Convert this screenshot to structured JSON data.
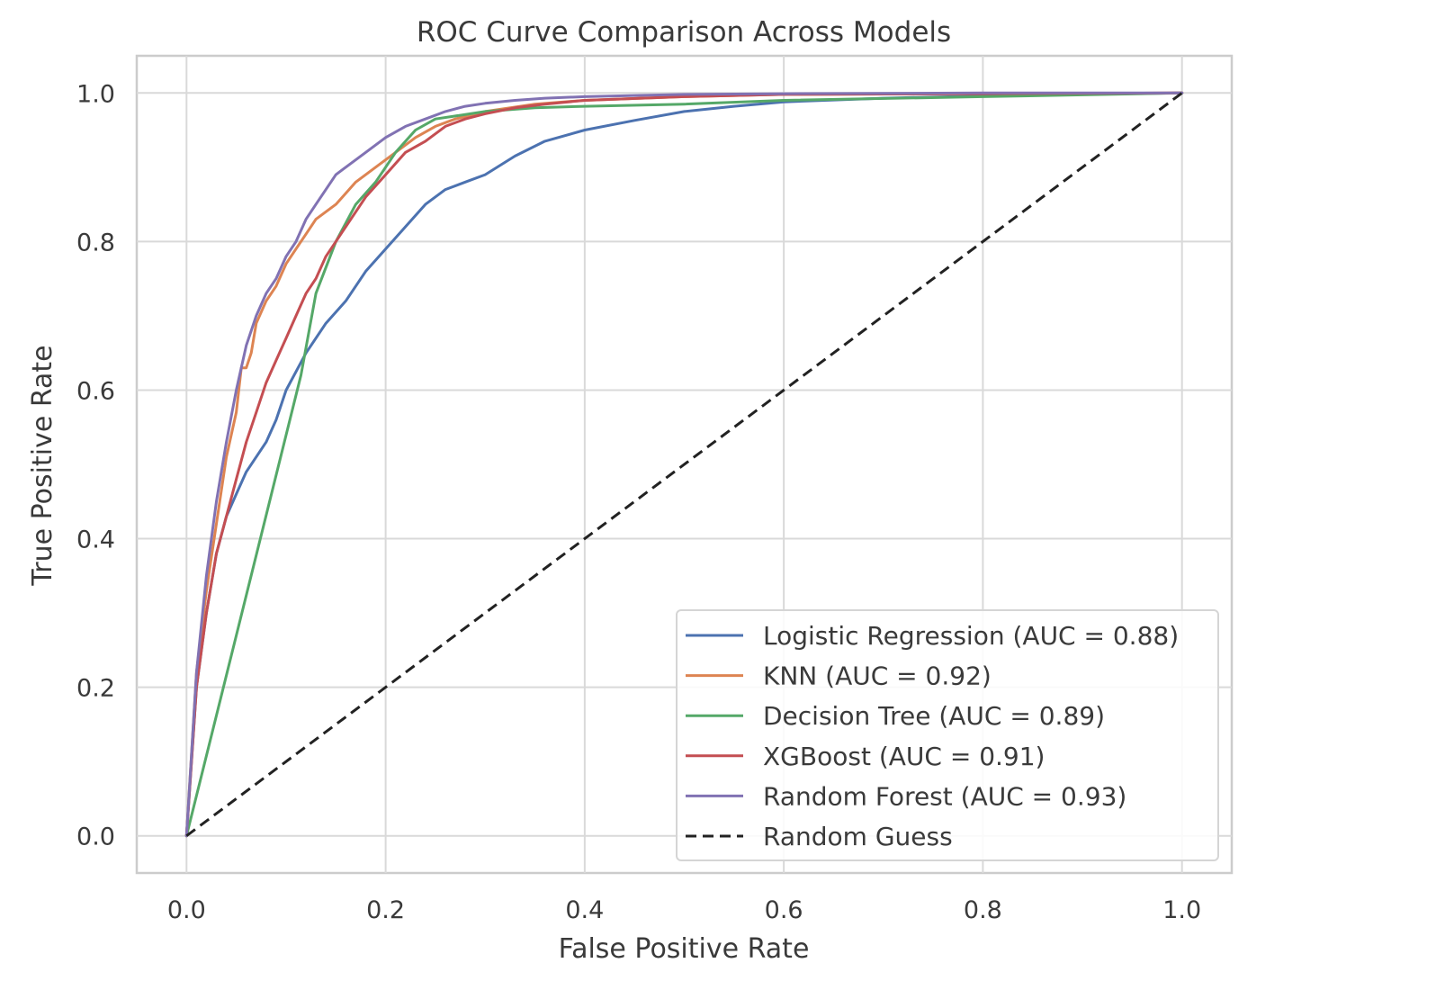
{
  "chart_data": {
    "type": "line",
    "title": "ROC Curve Comparison Across Models",
    "xlabel": "False Positive Rate",
    "ylabel": "True Positive Rate",
    "xlim": [
      -0.05,
      1.05
    ],
    "ylim": [
      -0.05,
      1.05
    ],
    "xticks": [
      "0.0",
      "0.2",
      "0.4",
      "0.6",
      "0.8",
      "1.0"
    ],
    "yticks": [
      "0.0",
      "0.2",
      "0.4",
      "0.6",
      "0.8",
      "1.0"
    ],
    "grid": true,
    "legend_position": "bottom-right",
    "series": [
      {
        "name": "Logistic Regression (AUC = 0.88)",
        "color": "#4c72b0",
        "dash": false,
        "x": [
          0,
          0.01,
          0.02,
          0.03,
          0.04,
          0.05,
          0.06,
          0.07,
          0.08,
          0.09,
          0.1,
          0.12,
          0.14,
          0.16,
          0.18,
          0.2,
          0.22,
          0.24,
          0.26,
          0.28,
          0.3,
          0.33,
          0.36,
          0.4,
          0.45,
          0.5,
          0.55,
          0.6,
          0.7,
          0.8,
          0.9,
          1.0
        ],
        "y": [
          0,
          0.2,
          0.3,
          0.38,
          0.43,
          0.46,
          0.49,
          0.51,
          0.53,
          0.56,
          0.6,
          0.65,
          0.69,
          0.72,
          0.76,
          0.79,
          0.82,
          0.85,
          0.87,
          0.88,
          0.89,
          0.915,
          0.935,
          0.95,
          0.963,
          0.975,
          0.982,
          0.988,
          0.993,
          0.996,
          0.998,
          1.0
        ]
      },
      {
        "name": "KNN (AUC = 0.92)",
        "color": "#dd8452",
        "dash": false,
        "x": [
          0,
          0.01,
          0.02,
          0.03,
          0.04,
          0.05,
          0.055,
          0.06,
          0.065,
          0.07,
          0.08,
          0.09,
          0.1,
          0.11,
          0.12,
          0.13,
          0.14,
          0.15,
          0.17,
          0.19,
          0.21,
          0.23,
          0.25,
          0.27,
          0.3,
          0.35,
          0.4,
          0.5,
          0.6,
          0.8,
          1.0
        ],
        "y": [
          0,
          0.22,
          0.33,
          0.42,
          0.51,
          0.57,
          0.63,
          0.63,
          0.65,
          0.69,
          0.72,
          0.74,
          0.77,
          0.79,
          0.81,
          0.83,
          0.84,
          0.85,
          0.88,
          0.9,
          0.92,
          0.94,
          0.955,
          0.965,
          0.975,
          0.985,
          0.99,
          0.995,
          0.998,
          0.999,
          1.0
        ]
      },
      {
        "name": "Decision Tree (AUC = 0.89)",
        "color": "#55a868",
        "dash": false,
        "x": [
          0,
          0.115,
          0.13,
          0.15,
          0.17,
          0.19,
          0.21,
          0.23,
          0.25,
          0.3,
          0.35,
          0.4,
          0.5,
          0.6,
          0.8,
          1.0
        ],
        "y": [
          0,
          0.62,
          0.73,
          0.8,
          0.85,
          0.88,
          0.92,
          0.95,
          0.965,
          0.975,
          0.98,
          0.982,
          0.985,
          0.99,
          0.995,
          1.0
        ]
      },
      {
        "name": "XGBoost (AUC = 0.91)",
        "color": "#c44e52",
        "dash": false,
        "x": [
          0,
          0.01,
          0.02,
          0.03,
          0.04,
          0.05,
          0.06,
          0.07,
          0.08,
          0.09,
          0.1,
          0.11,
          0.12,
          0.13,
          0.14,
          0.15,
          0.16,
          0.18,
          0.2,
          0.22,
          0.24,
          0.26,
          0.28,
          0.3,
          0.33,
          0.36,
          0.4,
          0.5,
          0.6,
          0.8,
          1.0
        ],
        "y": [
          0,
          0.2,
          0.3,
          0.38,
          0.43,
          0.48,
          0.53,
          0.57,
          0.61,
          0.64,
          0.67,
          0.7,
          0.73,
          0.75,
          0.78,
          0.8,
          0.82,
          0.86,
          0.89,
          0.92,
          0.935,
          0.955,
          0.965,
          0.972,
          0.98,
          0.985,
          0.99,
          0.995,
          0.998,
          0.999,
          1.0
        ]
      },
      {
        "name": "Random Forest (AUC = 0.93)",
        "color": "#8172b3",
        "dash": false,
        "x": [
          0,
          0.01,
          0.02,
          0.03,
          0.04,
          0.05,
          0.06,
          0.07,
          0.08,
          0.09,
          0.1,
          0.11,
          0.12,
          0.13,
          0.14,
          0.15,
          0.16,
          0.18,
          0.2,
          0.22,
          0.24,
          0.26,
          0.28,
          0.3,
          0.33,
          0.36,
          0.4,
          0.5,
          0.6,
          0.8,
          1.0
        ],
        "y": [
          0,
          0.22,
          0.35,
          0.45,
          0.53,
          0.6,
          0.66,
          0.7,
          0.73,
          0.75,
          0.78,
          0.8,
          0.83,
          0.85,
          0.87,
          0.89,
          0.9,
          0.92,
          0.94,
          0.955,
          0.965,
          0.975,
          0.982,
          0.986,
          0.99,
          0.993,
          0.995,
          0.998,
          0.999,
          1.0,
          1.0
        ]
      },
      {
        "name": "Random Guess",
        "color": "#222222",
        "dash": true,
        "x": [
          0,
          1
        ],
        "y": [
          0,
          1
        ]
      }
    ]
  }
}
